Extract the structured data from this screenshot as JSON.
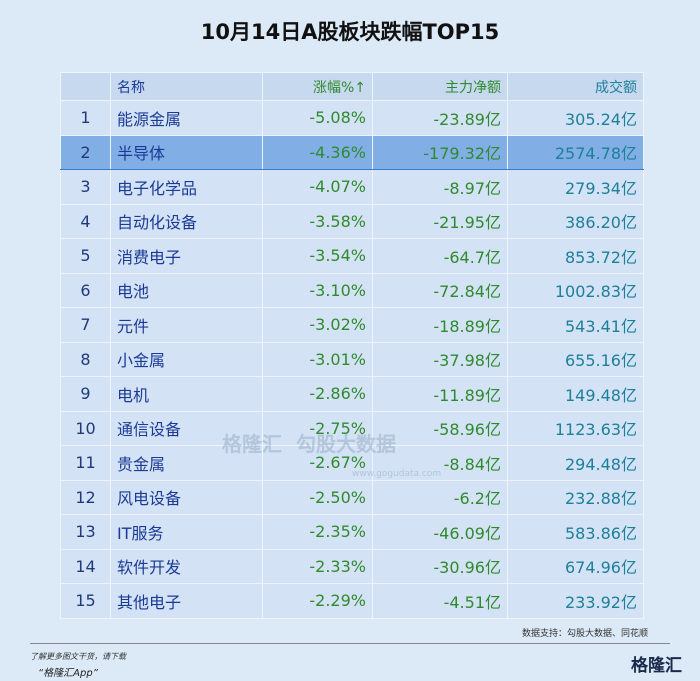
{
  "header": {
    "title": "10月14日A股板块跌幅TOP15"
  },
  "table": {
    "columns": [
      "",
      "名称",
      "涨幅%↑",
      "主力净额",
      "成交额"
    ],
    "rows": [
      [
        "1",
        "能源金属",
        "-5.08%",
        "-23.89亿",
        "305.24亿"
      ],
      [
        "2",
        "半导体",
        "-4.36%",
        "-179.32亿",
        "2574.78亿"
      ],
      [
        "3",
        "电子化学品",
        "-4.07%",
        "-8.97亿",
        "279.34亿"
      ],
      [
        "4",
        "自动化设备",
        "-3.58%",
        "-21.95亿",
        "386.20亿"
      ],
      [
        "5",
        "消费电子",
        "-3.54%",
        "-64.7亿",
        "853.72亿"
      ],
      [
        "6",
        "电池",
        "-3.10%",
        "-72.84亿",
        "1002.83亿"
      ],
      [
        "7",
        "元件",
        "-3.02%",
        "-18.89亿",
        "543.41亿"
      ],
      [
        "8",
        "小金属",
        "-3.01%",
        "-37.98亿",
        "655.16亿"
      ],
      [
        "9",
        "电机",
        "-2.86%",
        "-11.89亿",
        "149.48亿"
      ],
      [
        "10",
        "通信设备",
        "-2.75%",
        "-58.96亿",
        "1123.63亿"
      ],
      [
        "11",
        "贵金属",
        "-2.67%",
        "-8.84亿",
        "294.48亿"
      ],
      [
        "12",
        "风电设备",
        "-2.50%",
        "-6.2亿",
        "232.88亿"
      ],
      [
        "13",
        "IT服务",
        "-2.35%",
        "-46.09亿",
        "583.86亿"
      ],
      [
        "14",
        "软件开发",
        "-2.33%",
        "-30.96亿",
        "674.96亿"
      ],
      [
        "15",
        "其他电子",
        "-2.29%",
        "-4.51亿",
        "233.92亿"
      ]
    ]
  },
  "watermark": {
    "brand": "格隆汇",
    "sub": "勾股大数据",
    "url": "www.gogudata.com"
  },
  "footer": {
    "source": "数据支持：勾股大数据、同花顺",
    "note": "了解更多图文干货，请下载",
    "app": "“格隆汇App”",
    "logo": "格隆汇"
  }
}
